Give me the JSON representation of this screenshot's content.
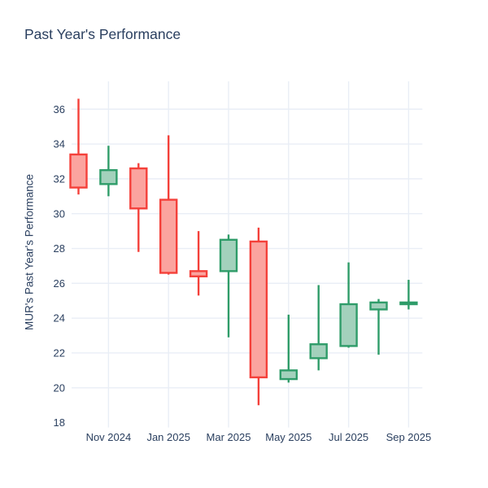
{
  "chart_data": {
    "type": "candlestick",
    "title": "Past Year's Performance",
    "ylabel": "MUR's Past Year's Performance",
    "xlabel": "",
    "legend": "none",
    "grid": true,
    "background": "#ffffff",
    "ylim": [
      18,
      37.6
    ],
    "y_ticks": [
      18,
      20,
      22,
      24,
      26,
      28,
      30,
      32,
      34,
      36
    ],
    "x_tick_labels": [
      "Nov 2024",
      "Jan 2025",
      "Mar 2025",
      "May 2025",
      "Jul 2025",
      "Sep 2025"
    ],
    "x_tick_indices": [
      1,
      3,
      5,
      7,
      9,
      11
    ],
    "categories": [
      "Oct 2024",
      "Nov 2024",
      "Dec 2024",
      "Jan 2025",
      "Feb 2025",
      "Mar 2025",
      "Apr 2025",
      "May 2025",
      "Jun 2025",
      "Jul 2025",
      "Aug 2025",
      "Sep 2025"
    ],
    "series": [
      {
        "name": "MUR",
        "ohlc": [
          {
            "x": "Oct 2024",
            "open": 33.4,
            "high": 36.6,
            "low": 31.1,
            "close": 31.5
          },
          {
            "x": "Nov 2024",
            "open": 31.7,
            "high": 33.9,
            "low": 31.0,
            "close": 32.5
          },
          {
            "x": "Dec 2024",
            "open": 32.6,
            "high": 32.9,
            "low": 27.8,
            "close": 30.3
          },
          {
            "x": "Jan 2025",
            "open": 30.8,
            "high": 34.5,
            "low": 26.5,
            "close": 26.6
          },
          {
            "x": "Feb 2025",
            "open": 26.7,
            "high": 29.0,
            "low": 25.3,
            "close": 26.4
          },
          {
            "x": "Mar 2025",
            "open": 26.7,
            "high": 28.8,
            "low": 22.9,
            "close": 28.5
          },
          {
            "x": "Apr 2025",
            "open": 28.4,
            "high": 29.2,
            "low": 19.0,
            "close": 20.6
          },
          {
            "x": "May 2025",
            "open": 20.5,
            "high": 24.2,
            "low": 20.3,
            "close": 21.0
          },
          {
            "x": "Jun 2025",
            "open": 21.7,
            "high": 25.9,
            "low": 21.0,
            "close": 22.5
          },
          {
            "x": "Jul 2025",
            "open": 22.4,
            "high": 27.2,
            "low": 22.3,
            "close": 24.8
          },
          {
            "x": "Aug 2025",
            "open": 24.5,
            "high": 25.1,
            "low": 21.9,
            "close": 24.9
          },
          {
            "x": "Sep 2025",
            "open": 24.8,
            "high": 26.2,
            "low": 24.5,
            "close": 24.9
          }
        ]
      }
    ],
    "colors": {
      "increasing_line": "#2f9c69",
      "increasing_fill": "#a3d1bc",
      "decreasing_line": "#f4403a",
      "decreasing_fill": "#fba49f",
      "grid": "#e9eef6",
      "text": "#2a3f5f"
    }
  }
}
